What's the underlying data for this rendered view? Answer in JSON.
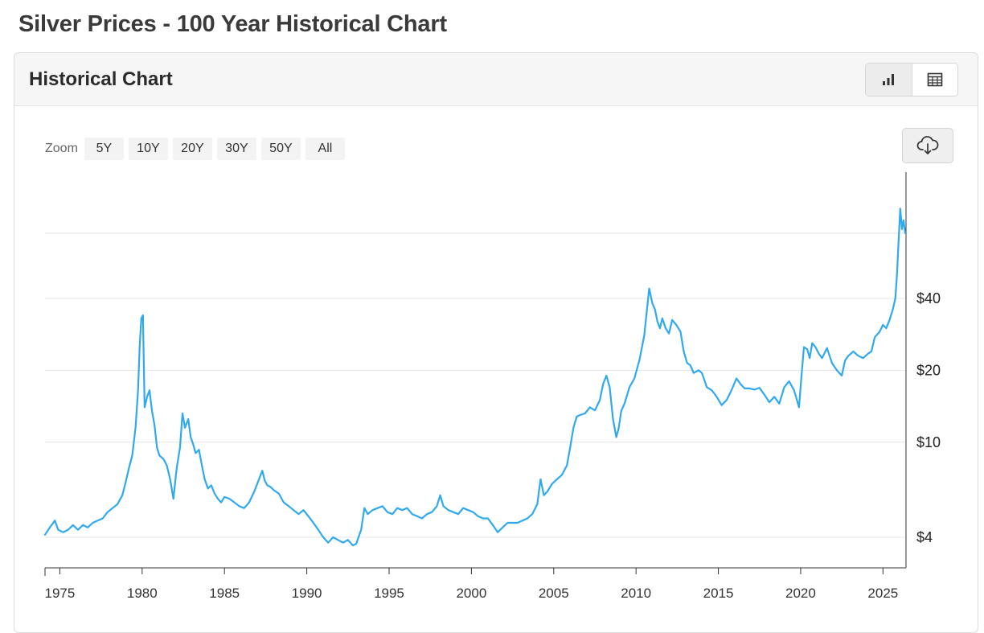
{
  "page": {
    "title": "Silver Prices - 100 Year Historical Chart"
  },
  "card": {
    "title": "Historical Chart",
    "views": [
      {
        "icon": "bar-chart-icon",
        "active": true
      },
      {
        "icon": "table-icon",
        "active": false
      }
    ]
  },
  "zoom": {
    "label": "Zoom",
    "buttons": [
      "5Y",
      "10Y",
      "20Y",
      "30Y",
      "50Y",
      "All"
    ]
  },
  "download": {
    "icon": "cloud-download-icon"
  },
  "colors": {
    "line": "#2fa9ef",
    "grid": "#e4e4e4",
    "axis": "#333333"
  },
  "chart_data": {
    "type": "line",
    "title": "",
    "xlabel": "",
    "ylabel": "",
    "y_scale": "log",
    "y_axis_position": "right",
    "grid": true,
    "xlim": [
      1974.1,
      2026.4
    ],
    "ylim": [
      3.4,
      100
    ],
    "x_ticks": [
      "1975",
      "1980",
      "1985",
      "1990",
      "1995",
      "2000",
      "2005",
      "2010",
      "2015",
      "2020",
      "2025"
    ],
    "y_ticks": [
      {
        "value": 4,
        "label": "$4"
      },
      {
        "value": 10,
        "label": "$10"
      },
      {
        "value": 20,
        "label": "$20"
      },
      {
        "value": 40,
        "label": "$40"
      },
      {
        "value": 75,
        "label": ""
      }
    ],
    "series": [
      {
        "name": "",
        "x": [
          1974.1,
          1974.4,
          1974.7,
          1974.9,
          1975.2,
          1975.5,
          1975.8,
          1976.1,
          1976.4,
          1976.7,
          1977.0,
          1977.3,
          1977.6,
          1977.9,
          1978.2,
          1978.5,
          1978.8,
          1979.0,
          1979.2,
          1979.4,
          1979.6,
          1979.75,
          1979.85,
          1979.95,
          1980.05,
          1980.15,
          1980.3,
          1980.45,
          1980.6,
          1980.75,
          1980.9,
          1981.05,
          1981.3,
          1981.5,
          1981.7,
          1981.9,
          1982.1,
          1982.3,
          1982.45,
          1982.6,
          1982.8,
          1982.95,
          1983.1,
          1983.25,
          1983.45,
          1983.6,
          1983.8,
          1984.0,
          1984.2,
          1984.4,
          1984.6,
          1984.8,
          1985.0,
          1985.3,
          1985.6,
          1985.9,
          1986.2,
          1986.5,
          1986.8,
          1987.1,
          1987.3,
          1987.45,
          1987.6,
          1987.8,
          1988.0,
          1988.3,
          1988.6,
          1988.9,
          1989.2,
          1989.5,
          1989.8,
          1990.1,
          1990.4,
          1990.7,
          1991.0,
          1991.3,
          1991.6,
          1991.9,
          1992.2,
          1992.5,
          1992.8,
          1993.0,
          1993.3,
          1993.5,
          1993.7,
          1994.0,
          1994.3,
          1994.6,
          1994.9,
          1995.2,
          1995.5,
          1995.8,
          1996.1,
          1996.4,
          1996.7,
          1997.0,
          1997.3,
          1997.6,
          1997.9,
          1998.1,
          1998.3,
          1998.6,
          1998.9,
          1999.2,
          1999.5,
          1999.8,
          2000.1,
          2000.4,
          2000.7,
          2001.0,
          2001.3,
          2001.6,
          2001.9,
          2002.2,
          2002.5,
          2002.8,
          2003.1,
          2003.4,
          2003.7,
          2004.0,
          2004.2,
          2004.4,
          2004.6,
          2004.9,
          2005.2,
          2005.5,
          2005.8,
          2006.0,
          2006.2,
          2006.4,
          2006.6,
          2006.9,
          2007.2,
          2007.5,
          2007.8,
          2008.0,
          2008.2,
          2008.4,
          2008.6,
          2008.8,
          2008.95,
          2009.1,
          2009.3,
          2009.6,
          2009.9,
          2010.2,
          2010.5,
          2010.8,
          2011.0,
          2011.15,
          2011.3,
          2011.45,
          2011.6,
          2011.8,
          2012.0,
          2012.2,
          2012.45,
          2012.7,
          2012.9,
          2013.1,
          2013.3,
          2013.5,
          2013.8,
          2014.0,
          2014.3,
          2014.6,
          2014.9,
          2015.2,
          2015.5,
          2015.8,
          2016.1,
          2016.35,
          2016.6,
          2016.9,
          2017.2,
          2017.5,
          2017.8,
          2018.1,
          2018.4,
          2018.7,
          2019.0,
          2019.3,
          2019.6,
          2019.9,
          2020.05,
          2020.2,
          2020.4,
          2020.55,
          2020.7,
          2020.9,
          2021.1,
          2021.3,
          2021.6,
          2021.9,
          2022.2,
          2022.5,
          2022.7,
          2022.9,
          2023.2,
          2023.5,
          2023.8,
          2024.1,
          2024.3,
          2024.5,
          2024.8,
          2025.0,
          2025.2,
          2025.4,
          2025.6,
          2025.75,
          2025.85,
          2025.95,
          2026.05,
          2026.15,
          2026.25,
          2026.35
        ],
        "values": [
          4.1,
          4.4,
          4.7,
          4.3,
          4.2,
          4.3,
          4.5,
          4.3,
          4.5,
          4.4,
          4.6,
          4.7,
          4.8,
          5.1,
          5.3,
          5.5,
          6.0,
          6.8,
          7.8,
          8.8,
          11.5,
          16.5,
          25.0,
          33.0,
          34.0,
          14.0,
          15.5,
          16.5,
          13.5,
          11.8,
          9.5,
          8.8,
          8.5,
          8.0,
          7.0,
          5.8,
          7.8,
          9.5,
          13.2,
          11.5,
          12.5,
          10.5,
          9.8,
          9.0,
          9.3,
          8.2,
          7.0,
          6.4,
          6.6,
          6.1,
          5.8,
          5.6,
          5.9,
          5.8,
          5.6,
          5.4,
          5.3,
          5.6,
          6.2,
          7.0,
          7.6,
          6.9,
          6.6,
          6.5,
          6.3,
          6.1,
          5.6,
          5.4,
          5.2,
          5.0,
          5.2,
          4.9,
          4.6,
          4.3,
          4.0,
          3.8,
          4.0,
          3.9,
          3.8,
          3.9,
          3.7,
          3.75,
          4.3,
          5.3,
          5.0,
          5.2,
          5.3,
          5.4,
          5.1,
          5.0,
          5.3,
          5.2,
          5.3,
          5.0,
          4.9,
          4.8,
          5.0,
          5.1,
          5.4,
          6.0,
          5.4,
          5.2,
          5.1,
          5.0,
          5.3,
          5.2,
          5.1,
          4.9,
          4.8,
          4.8,
          4.5,
          4.2,
          4.4,
          4.6,
          4.6,
          4.6,
          4.7,
          4.8,
          5.0,
          5.5,
          7.0,
          6.0,
          6.2,
          6.7,
          7.0,
          7.3,
          8.0,
          9.5,
          11.5,
          12.8,
          13.0,
          13.2,
          14.0,
          13.6,
          15.0,
          17.5,
          19.0,
          17.0,
          12.5,
          10.5,
          11.5,
          13.5,
          14.5,
          17.0,
          18.5,
          22.0,
          28.0,
          44.0,
          38.0,
          36.0,
          32.0,
          30.0,
          33.0,
          30.0,
          28.5,
          32.5,
          31.0,
          29.0,
          24.0,
          21.5,
          21.0,
          19.5,
          20.0,
          19.5,
          17.0,
          16.5,
          15.5,
          14.3,
          15.0,
          16.5,
          18.5,
          17.5,
          16.8,
          16.8,
          16.6,
          16.9,
          15.8,
          14.7,
          15.5,
          14.5,
          17.0,
          18.0,
          16.5,
          14.0,
          19.0,
          25.0,
          24.5,
          22.5,
          26.0,
          25.0,
          23.5,
          22.5,
          24.8,
          21.5,
          20.0,
          19.0,
          22.0,
          23.0,
          24.0,
          23.0,
          22.5,
          23.5,
          24.0,
          27.5,
          29.0,
          31.0,
          30.0,
          32.5,
          36.0,
          40.0,
          50.0,
          70.0,
          95.0,
          78.0,
          85.0,
          75.0
        ]
      }
    ]
  }
}
